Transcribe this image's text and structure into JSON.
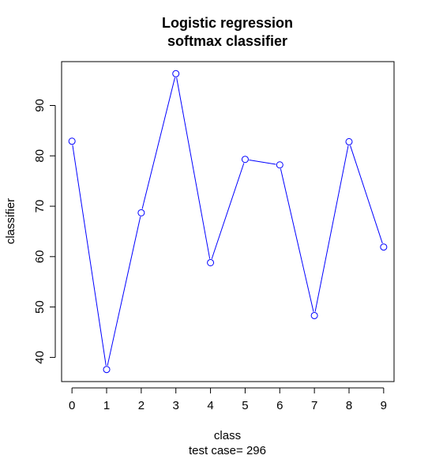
{
  "chart_data": {
    "type": "line",
    "title": [
      "Logistic regression",
      "softmax classifier"
    ],
    "xlabel": "class",
    "sub": "test case= 296",
    "ylabel": "classifier",
    "x": [
      0,
      1,
      2,
      3,
      4,
      5,
      6,
      7,
      8,
      9
    ],
    "values": [
      82.9,
      37.6,
      68.7,
      96.3,
      58.8,
      79.3,
      78.2,
      48.3,
      82.8,
      61.9
    ],
    "xticks": [
      "0",
      "1",
      "2",
      "3",
      "4",
      "5",
      "6",
      "7",
      "8",
      "9"
    ],
    "yticks": [
      "40",
      "50",
      "60",
      "70",
      "80",
      "90"
    ],
    "xlim": [
      -0.3,
      9.3
    ],
    "ylim": [
      35.2,
      98.7
    ],
    "grid": false,
    "color": "#0000ff",
    "marker": "open-circle"
  }
}
